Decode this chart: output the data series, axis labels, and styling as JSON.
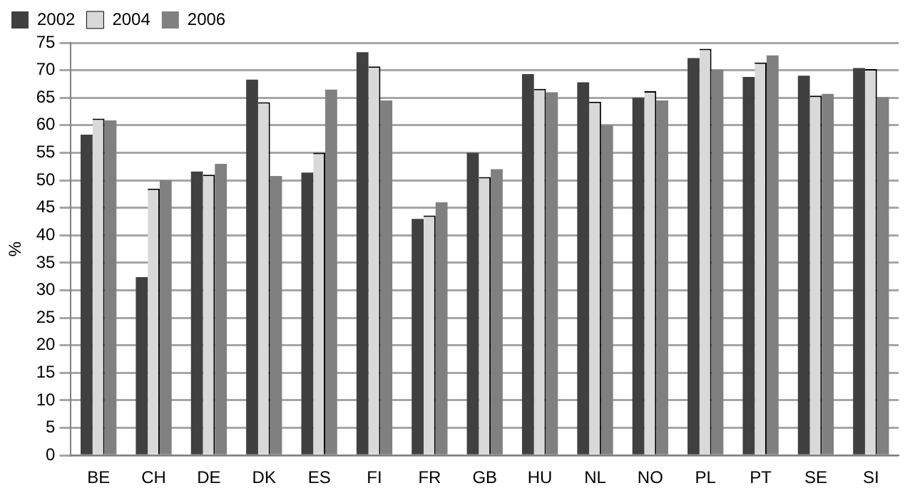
{
  "chart_data": {
    "type": "bar",
    "ylabel": "%",
    "categories": [
      "BE",
      "CH",
      "DE",
      "DK",
      "ES",
      "FI",
      "FR",
      "GB",
      "HU",
      "NL",
      "NO",
      "PL",
      "PT",
      "SE",
      "SI"
    ],
    "series": [
      {
        "name": "2002",
        "color": "#404040",
        "values": [
          58.3,
          32.4,
          51.6,
          68.3,
          51.4,
          73.3,
          43,
          55,
          69.3,
          67.8,
          65,
          72.2,
          68.8,
          69,
          70.4
        ]
      },
      {
        "name": "2004",
        "color": "#d9d9d9",
        "values": [
          61.2,
          48.5,
          51,
          64.2,
          55,
          70.7,
          43.6,
          50.6,
          66.6,
          64.3,
          66.2,
          73.9,
          71.4,
          65.4,
          70.2
        ]
      },
      {
        "name": "2006",
        "color": "#808080",
        "values": [
          60.9,
          50,
          53,
          50.8,
          66.5,
          64.5,
          46,
          52,
          66,
          60,
          64.5,
          70.1,
          72.7,
          65.7,
          65.1
        ]
      }
    ],
    "ylim": [
      0,
      75
    ],
    "yticks": [
      0,
      5,
      10,
      15,
      20,
      25,
      30,
      35,
      40,
      45,
      50,
      55,
      60,
      65,
      70,
      75
    ],
    "grid": "y",
    "legend": "top left"
  }
}
